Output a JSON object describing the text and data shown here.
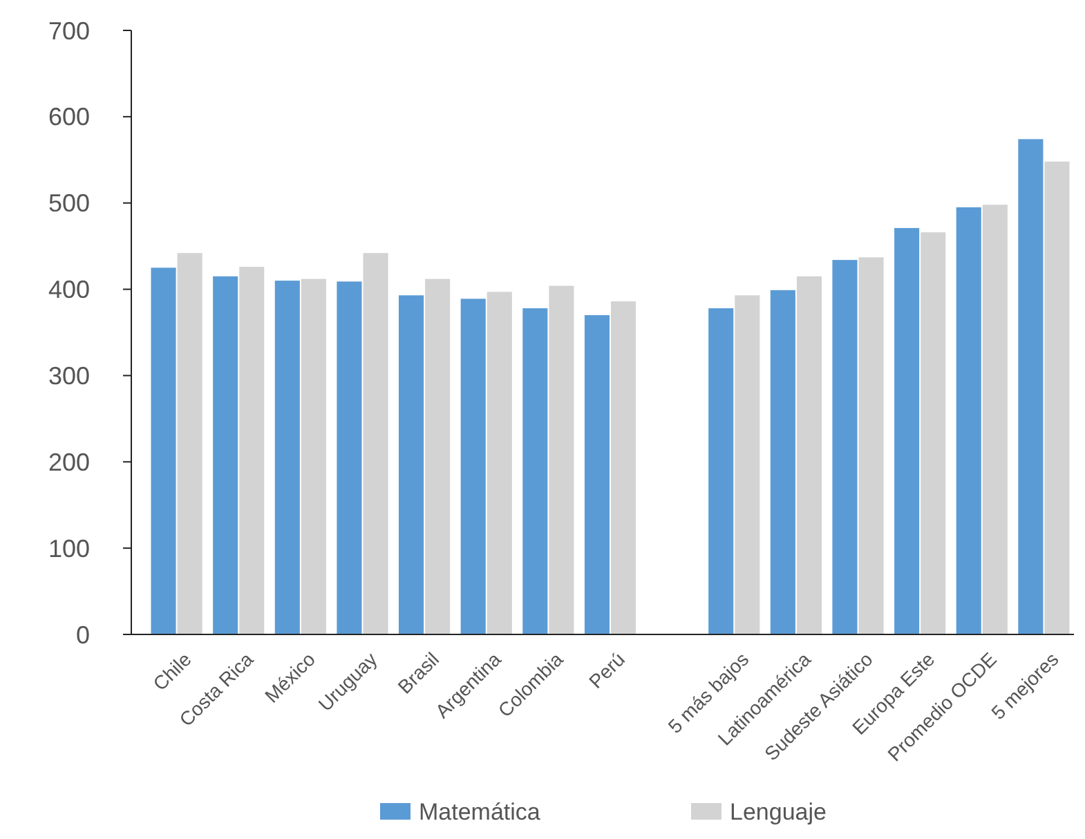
{
  "chart_data": {
    "type": "bar",
    "categories": [
      "Chile",
      "Costa Rica",
      "México",
      "Uruguay",
      "Brasil",
      "Argentina",
      "Colombia",
      "Perú",
      null,
      "5 más bajos",
      "Latinoamérica",
      "Sudeste Asiático",
      "Europa Este",
      "Promedio OCDE",
      "5 mejores"
    ],
    "series": [
      {
        "name": "Matemática",
        "color": "#5b9bd5",
        "values": [
          425,
          415,
          410,
          409,
          393,
          389,
          378,
          370,
          null,
          378,
          399,
          434,
          471,
          495,
          574
        ]
      },
      {
        "name": "Lenguaje",
        "color": "#d3d3d3",
        "values": [
          442,
          426,
          412,
          442,
          412,
          397,
          404,
          386,
          null,
          393,
          415,
          437,
          466,
          498,
          548
        ]
      }
    ],
    "ylim": [
      0,
      700
    ],
    "yticks": [
      0,
      100,
      200,
      300,
      400,
      500,
      600,
      700
    ],
    "grid": false,
    "legend": "bottom"
  }
}
